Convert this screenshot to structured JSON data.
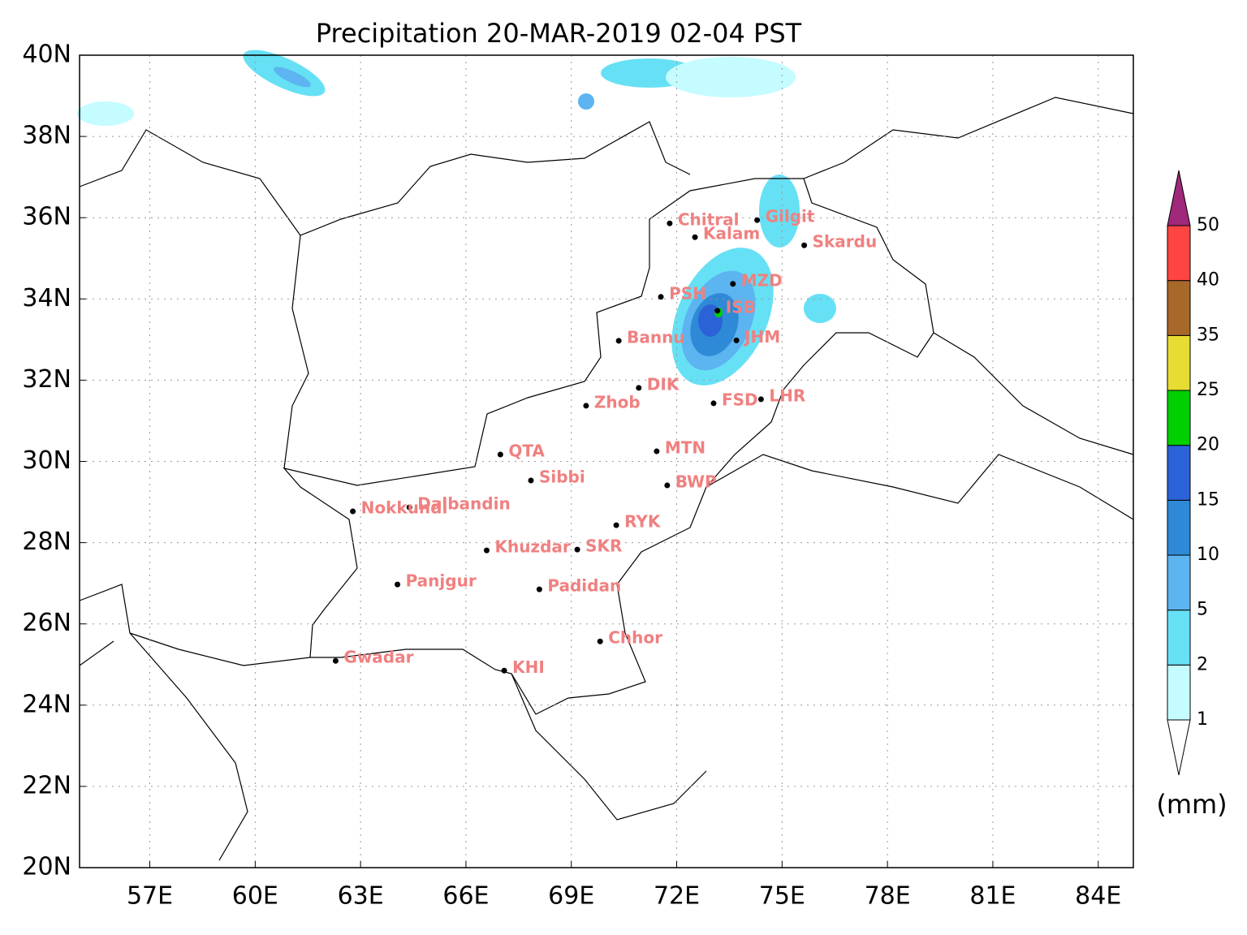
{
  "map": {
    "title": "Precipitation 20-MAR-2019 02-04 PST",
    "xlim": [
      55,
      85
    ],
    "ylim": [
      20,
      40
    ],
    "xticks": [
      {
        "value": 57,
        "label": "57E"
      },
      {
        "value": 60,
        "label": "60E"
      },
      {
        "value": 63,
        "label": "63E"
      },
      {
        "value": 66,
        "label": "66E"
      },
      {
        "value": 69,
        "label": "69E"
      },
      {
        "value": 72,
        "label": "72E"
      },
      {
        "value": 75,
        "label": "75E"
      },
      {
        "value": 78,
        "label": "78E"
      },
      {
        "value": 81,
        "label": "81E"
      },
      {
        "value": 84,
        "label": "84E"
      }
    ],
    "yticks": [
      {
        "value": 20,
        "label": "20N"
      },
      {
        "value": 22,
        "label": "22N"
      },
      {
        "value": 24,
        "label": "24N"
      },
      {
        "value": 26,
        "label": "26N"
      },
      {
        "value": 28,
        "label": "28N"
      },
      {
        "value": 30,
        "label": "30N"
      },
      {
        "value": 32,
        "label": "32N"
      },
      {
        "value": 34,
        "label": "34N"
      },
      {
        "value": 36,
        "label": "36N"
      },
      {
        "value": 38,
        "label": "38N"
      },
      {
        "value": 40,
        "label": "40N"
      }
    ],
    "grid": true,
    "cities": [
      {
        "name": "Chitral",
        "lon": 71.8,
        "lat": 35.86
      },
      {
        "name": "Gilgit",
        "lon": 74.29,
        "lat": 35.94
      },
      {
        "name": "Kalam",
        "lon": 72.52,
        "lat": 35.52
      },
      {
        "name": "Skardu",
        "lon": 75.63,
        "lat": 35.32
      },
      {
        "name": "MZD",
        "lon": 73.6,
        "lat": 34.37
      },
      {
        "name": "PSH",
        "lon": 71.55,
        "lat": 34.05
      },
      {
        "name": "ISB",
        "lon": 73.16,
        "lat": 33.71
      },
      {
        "name": "Bannu",
        "lon": 70.35,
        "lat": 32.97
      },
      {
        "name": "JHM",
        "lon": 73.7,
        "lat": 32.98
      },
      {
        "name": "DIK",
        "lon": 70.92,
        "lat": 31.81
      },
      {
        "name": "FSD",
        "lon": 73.05,
        "lat": 31.43
      },
      {
        "name": "LHR",
        "lon": 74.4,
        "lat": 31.53
      },
      {
        "name": "Zhob",
        "lon": 69.42,
        "lat": 31.37
      },
      {
        "name": "MTN",
        "lon": 71.43,
        "lat": 30.25
      },
      {
        "name": "QTA",
        "lon": 66.98,
        "lat": 30.17
      },
      {
        "name": "Sibbi",
        "lon": 67.85,
        "lat": 29.53
      },
      {
        "name": "BWP",
        "lon": 71.73,
        "lat": 29.41
      },
      {
        "name": "Dalbandin",
        "lon": 64.39,
        "lat": 28.87
      },
      {
        "name": "Nokkundi",
        "lon": 62.78,
        "lat": 28.77
      },
      {
        "name": "RYK",
        "lon": 70.28,
        "lat": 28.43
      },
      {
        "name": "Khuzdar",
        "lon": 66.59,
        "lat": 27.81
      },
      {
        "name": "SKR",
        "lon": 69.17,
        "lat": 27.83
      },
      {
        "name": "Padidan",
        "lon": 68.09,
        "lat": 26.85
      },
      {
        "name": "Panjgur",
        "lon": 64.05,
        "lat": 26.97
      },
      {
        "name": "Chhor",
        "lon": 69.82,
        "lat": 25.57
      },
      {
        "name": "Gwadar",
        "lon": 62.29,
        "lat": 25.09
      },
      {
        "name": "KHI",
        "lon": 67.09,
        "lat": 24.85
      }
    ],
    "colorbar": {
      "levels": [
        1,
        2,
        5,
        10,
        15,
        20,
        25,
        35,
        40,
        50
      ],
      "colors": [
        "#c4fcff",
        "#66e0f5",
        "#5cb4f0",
        "#2e8ad6",
        "#2c62d8",
        "#00d000",
        "#e6dc32",
        "#a8682a",
        "#ff4444"
      ],
      "under_color": "#ffffff",
      "over_color": "#a0287a",
      "unit": "(mm)"
    }
  }
}
